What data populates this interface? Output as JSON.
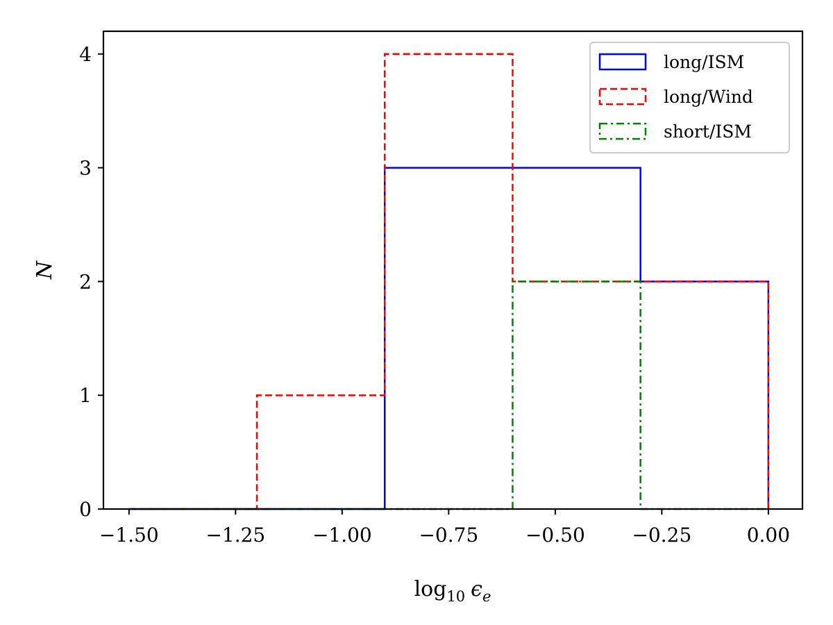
{
  "chart_data": {
    "type": "histogram",
    "title": "",
    "xlabel": {
      "base": "log",
      "sub": "10",
      "sym": "ϵ",
      "symsub": "e"
    },
    "ylabel": "N",
    "xlim": [
      -1.56,
      0.08
    ],
    "ylim": [
      0,
      4.2
    ],
    "xticks": [
      -1.5,
      -1.25,
      -1.0,
      -0.75,
      -0.5,
      -0.25,
      0.0
    ],
    "xtick_labels": [
      "−1.50",
      "−1.25",
      "−1.00",
      "−0.75",
      "−0.50",
      "−0.25",
      "0.00"
    ],
    "yticks": [
      0,
      1,
      2,
      3,
      4
    ],
    "ytick_labels": [
      "0",
      "1",
      "2",
      "3",
      "4"
    ],
    "bin_edges": [
      -1.5,
      -1.2,
      -0.9,
      -0.6,
      -0.3,
      0.0
    ],
    "grid": false,
    "legend_position": "top-right",
    "series": [
      {
        "name": "long/ISM",
        "counts": [
          0,
          0,
          3,
          3,
          2
        ],
        "color": "#0000ff",
        "dash": "solid"
      },
      {
        "name": "long/Wind",
        "counts": [
          0,
          1,
          4,
          2,
          2
        ],
        "color": "#ff0000",
        "dash": "dashed"
      },
      {
        "name": "short/ISM",
        "counts": [
          0,
          0,
          0,
          2,
          0
        ],
        "color": "#008000",
        "dash": "dashdot"
      }
    ]
  }
}
